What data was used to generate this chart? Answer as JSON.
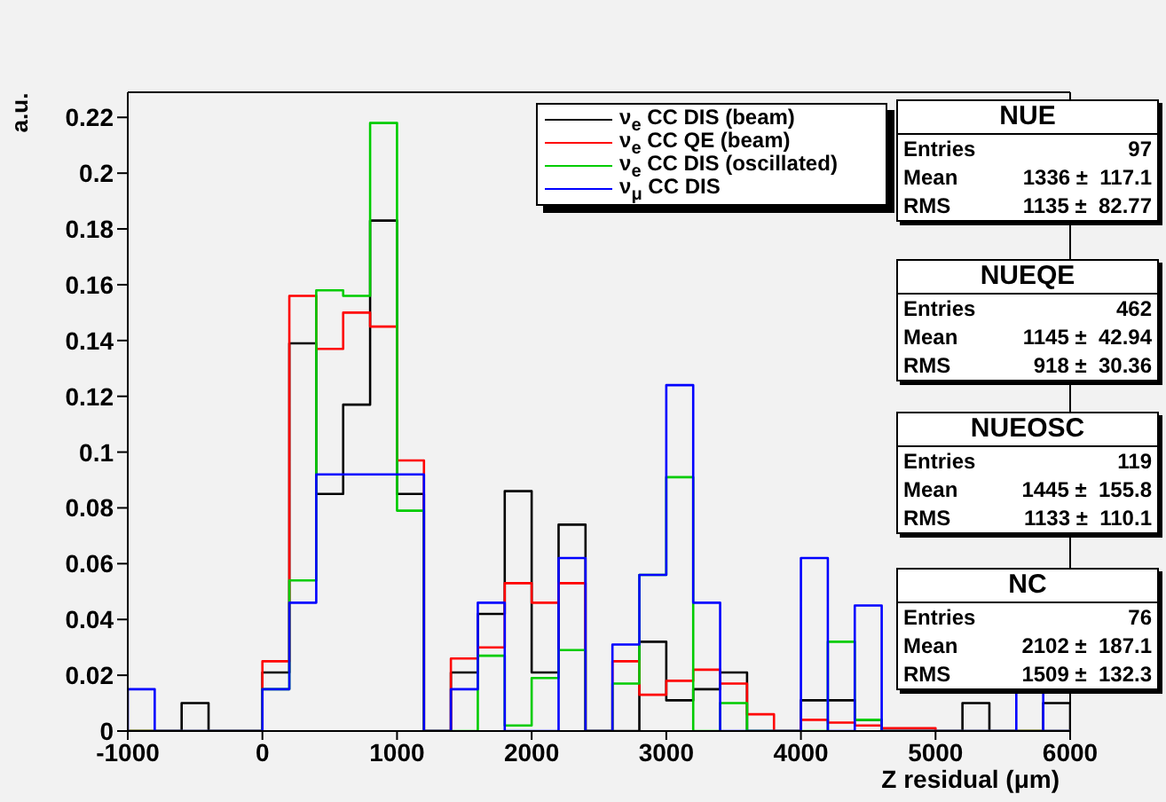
{
  "chart_data": {
    "type": "histogram",
    "xlabel": "Z residual (μm)",
    "ylabel": "a.u.",
    "bins": [
      -1000,
      -800,
      -600,
      -400,
      -200,
      0,
      200,
      400,
      600,
      800,
      1000,
      1200,
      1400,
      1600,
      1800,
      2000,
      2200,
      2400,
      2600,
      2800,
      3000,
      3200,
      3400,
      3600,
      3800,
      4000,
      4200,
      4400,
      4600,
      4800,
      5000,
      5200,
      5400,
      5600,
      5800,
      6000
    ],
    "series": [
      {
        "name": "ν$_{e}$ CC DIS (beam)",
        "color": "#000000",
        "values": [
          0,
          0,
          0.01,
          0,
          0,
          0.021,
          0.139,
          0.085,
          0.117,
          0.183,
          0.085,
          0,
          0.021,
          0.042,
          0.086,
          0.021,
          0.074,
          0,
          0,
          0.032,
          0.011,
          0.015,
          0.021,
          0,
          0,
          0.011,
          0.011,
          0.004,
          0,
          0,
          0,
          0.01,
          0,
          0,
          0.01
        ]
      },
      {
        "name": "ν$_{e}$ CC QE (beam)",
        "color": "#ff0000",
        "values": [
          0,
          0,
          0,
          0,
          0,
          0.025,
          0.156,
          0.137,
          0.15,
          0.145,
          0.097,
          0,
          0.026,
          0.03,
          0.053,
          0.046,
          0.053,
          0,
          0.025,
          0.013,
          0.018,
          0.022,
          0.017,
          0.006,
          0,
          0.004,
          0.003,
          0.002,
          0.001,
          0.001,
          0,
          0,
          0,
          0,
          0
        ]
      },
      {
        "name": "ν$_{e}$ CC DIS (oscillated)",
        "color": "#00cc00",
        "values": [
          0,
          0,
          0,
          0,
          0,
          0.015,
          0.054,
          0.158,
          0.156,
          0.218,
          0.079,
          0,
          0,
          0.027,
          0.002,
          0.019,
          0.029,
          0,
          0.017,
          0.056,
          0.091,
          0,
          0.01,
          0,
          0,
          0,
          0.032,
          0.004,
          0,
          0,
          0,
          0,
          0,
          0,
          0
        ]
      },
      {
        "name": "ν$_{μ}$ CC DIS",
        "color": "#0000ff",
        "values": [
          0.015,
          0,
          0,
          0,
          0,
          0.015,
          0.046,
          0.092,
          0.092,
          0.092,
          0.092,
          0,
          0.015,
          0.046,
          0,
          0,
          0.062,
          0,
          0.031,
          0.056,
          0.124,
          0.046,
          0,
          0,
          0,
          0.062,
          0,
          0.045,
          0,
          0,
          0,
          0,
          0,
          0.015,
          0
        ]
      }
    ],
    "xlim": [
      -1000,
      6000
    ],
    "xticks": [
      -1000,
      0,
      1000,
      2000,
      3000,
      4000,
      5000,
      6000
    ],
    "ylim": [
      0,
      0.229
    ],
    "yticks": [
      0,
      0.02,
      0.04,
      0.06,
      0.08,
      0.1,
      0.12,
      0.14,
      0.16,
      0.18,
      0.2,
      0.22
    ],
    "legend": "top right",
    "annotations": [
      "NUE",
      "Entries\t97",
      "Mean\t1336 ±  117.1",
      "RMS\t1135 ±  82.77",
      "NUEQE",
      "Entries\t462",
      "Mean\t1145 ±  42.94",
      "RMS\t918 ±  30.36",
      "NUEOSC",
      "Entries\t119",
      "Mean\t1445 ±  155.8",
      "RMS\t1133 ±  110.1",
      "NC",
      "Entries\t76",
      "Mean\t2102 ±  187.1",
      "RMS\t1509 ±  132.3"
    ]
  }
}
